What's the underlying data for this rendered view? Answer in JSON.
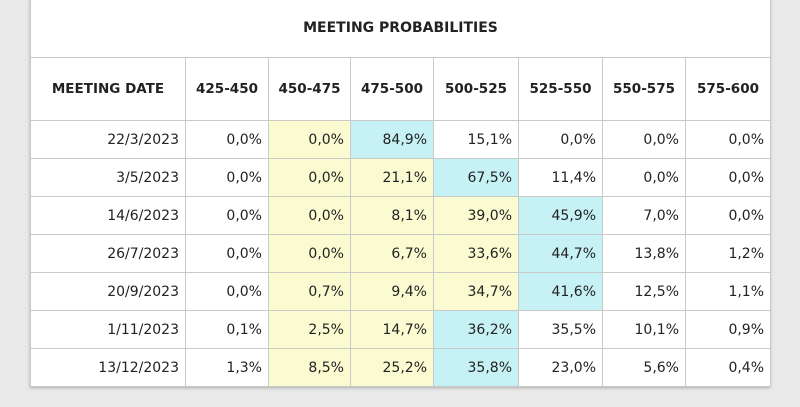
{
  "table": {
    "title": "MEETING PROBABILITIES",
    "header": [
      "MEETING DATE",
      "425-450",
      "450-475",
      "475-500",
      "500-525",
      "525-550",
      "550-575",
      "575-600"
    ],
    "rows": [
      {
        "date": "22/3/2023",
        "cells": [
          "0,0%",
          "0,0%",
          "84,9%",
          "15,1%",
          "0,0%",
          "0,0%",
          "0,0%"
        ],
        "fills": [
          "#ffffff",
          "#fbfbd2",
          "#c6f2f6",
          "#ffffff",
          "#ffffff",
          "#ffffff",
          "#ffffff"
        ]
      },
      {
        "date": "3/5/2023",
        "cells": [
          "0,0%",
          "0,0%",
          "21,1%",
          "67,5%",
          "11,4%",
          "0,0%",
          "0,0%"
        ],
        "fills": [
          "#ffffff",
          "#fbfbd2",
          "#fbfbd2",
          "#c6f2f6",
          "#ffffff",
          "#ffffff",
          "#ffffff"
        ]
      },
      {
        "date": "14/6/2023",
        "cells": [
          "0,0%",
          "0,0%",
          "8,1%",
          "39,0%",
          "45,9%",
          "7,0%",
          "0,0%"
        ],
        "fills": [
          "#ffffff",
          "#fbfbd2",
          "#fbfbd2",
          "#fbfbd2",
          "#c6f2f6",
          "#ffffff",
          "#ffffff"
        ]
      },
      {
        "date": "26/7/2023",
        "cells": [
          "0,0%",
          "0,0%",
          "6,7%",
          "33,6%",
          "44,7%",
          "13,8%",
          "1,2%"
        ],
        "fills": [
          "#ffffff",
          "#fbfbd2",
          "#fbfbd2",
          "#fbfbd2",
          "#c6f2f6",
          "#ffffff",
          "#ffffff"
        ]
      },
      {
        "date": "20/9/2023",
        "cells": [
          "0,0%",
          "0,7%",
          "9,4%",
          "34,7%",
          "41,6%",
          "12,5%",
          "1,1%"
        ],
        "fills": [
          "#ffffff",
          "#fbfbd2",
          "#fbfbd2",
          "#fbfbd2",
          "#c6f2f6",
          "#ffffff",
          "#ffffff"
        ]
      },
      {
        "date": "1/11/2023",
        "cells": [
          "0,1%",
          "2,5%",
          "14,7%",
          "36,2%",
          "35,5%",
          "10,1%",
          "0,9%"
        ],
        "fills": [
          "#ffffff",
          "#fbfbd2",
          "#fbfbd2",
          "#c6f2f6",
          "#ffffff",
          "#ffffff",
          "#ffffff"
        ]
      },
      {
        "date": "13/12/2023",
        "cells": [
          "1,3%",
          "8,5%",
          "25,2%",
          "35,8%",
          "23,0%",
          "5,6%",
          "0,4%"
        ],
        "fills": [
          "#ffffff",
          "#fbfbd2",
          "#fbfbd2",
          "#c6f2f6",
          "#ffffff",
          "#ffffff",
          "#ffffff"
        ]
      }
    ]
  }
}
